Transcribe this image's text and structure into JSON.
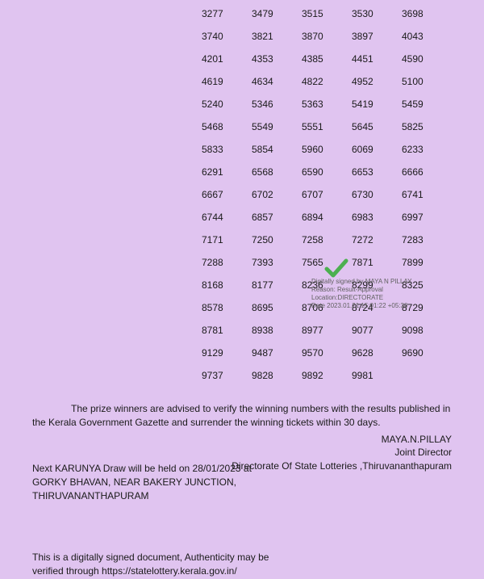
{
  "numbers": {
    "rows": [
      [
        "3277",
        "3479",
        "3515",
        "3530",
        "3698"
      ],
      [
        "3740",
        "3821",
        "3870",
        "3897",
        "4043"
      ],
      [
        "4201",
        "4353",
        "4385",
        "4451",
        "4590"
      ],
      [
        "4619",
        "4634",
        "4822",
        "4952",
        "5100"
      ],
      [
        "5240",
        "5346",
        "5363",
        "5419",
        "5459"
      ],
      [
        "5468",
        "5549",
        "5551",
        "5645",
        "5825"
      ],
      [
        "5833",
        "5854",
        "5960",
        "6069",
        "6233"
      ],
      [
        "6291",
        "6568",
        "6590",
        "6653",
        "6666"
      ],
      [
        "6667",
        "6702",
        "6707",
        "6730",
        "6741"
      ],
      [
        "6744",
        "6857",
        "6894",
        "6983",
        "6997"
      ],
      [
        "7171",
        "7250",
        "7258",
        "7272",
        "7283"
      ],
      [
        "7288",
        "7393",
        "7565",
        "7871",
        "7899"
      ],
      [
        "8168",
        "8177",
        "8236",
        "8299",
        "8325"
      ],
      [
        "8578",
        "8695",
        "8706",
        "8724",
        "8729"
      ],
      [
        "8781",
        "8938",
        "8977",
        "9077",
        "9098"
      ],
      [
        "9129",
        "9487",
        "9570",
        "9628",
        "9690"
      ],
      [
        "9737",
        "9828",
        "9892",
        "9981",
        ""
      ]
    ]
  },
  "advisory_text": "The prize winners are advised to verify the winning numbers with the results published in the Kerala Government Gazette and surrender the winning tickets within 30 days.",
  "signatory": {
    "name": "MAYA.N.PILLAY",
    "title": "Joint Director",
    "org": "Directorate Of State Lotteries ,Thiruvananthapuram"
  },
  "next_draw": {
    "line1": "Next KARUNYA Draw will be held on 28/01/2023 at",
    "line2": "GORKY BHAVAN,  NEAR BAKERY JUNCTION, THIRUVANANTHAPURAM"
  },
  "verification_text": "This is a digitally signed document, Authenticity may be verified through https://statelottery.kerala.gov.in/",
  "digital_signature": {
    "signed_by": "Digitally signed by MAYA N PILLAY",
    "reason": "Reason: Result-Approval",
    "location": "Location:DIRECTORATE",
    "date": "Date 2023.01.21 15:01:22 +05:30",
    "check_color": "#4CAF50"
  },
  "styling": {
    "background_color": "#e0c4f0",
    "text_color": "#1a1a1a",
    "number_fontsize": 12,
    "body_fontsize": 12,
    "sig_fontsize": 8,
    "sig_text_color": "#606060",
    "number_cell_width": 65,
    "number_row_gap": 14,
    "grid_left_margin": 210
  }
}
